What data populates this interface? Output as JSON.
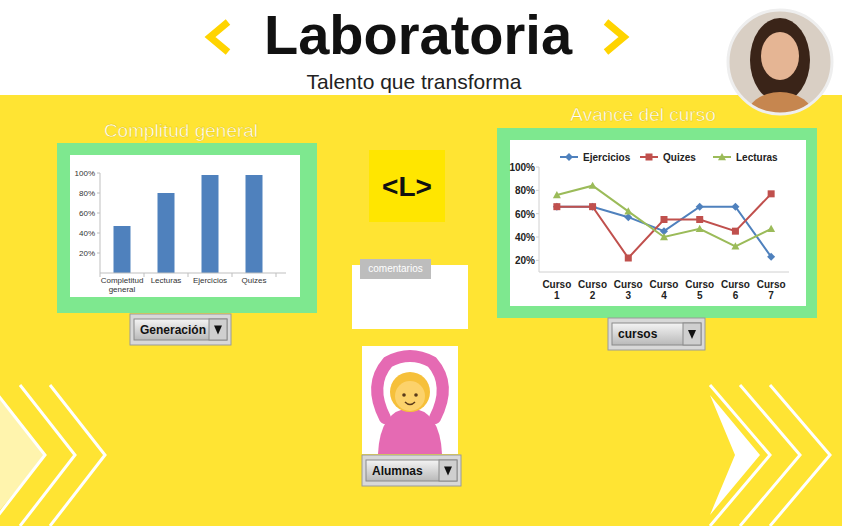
{
  "header": {
    "brand": "Laboratoria",
    "tagline": "Talento que transforma"
  },
  "chart_data": [
    {
      "type": "bar",
      "title": "Complitud general",
      "categories": [
        "Completitud general",
        "Lecturas",
        "Ejercicios",
        "Quizes"
      ],
      "values": [
        47,
        80,
        98,
        98
      ],
      "color": "#4f81bd",
      "ylim": [
        0,
        100
      ],
      "yticks": [
        {
          "value": 20,
          "label": "20%"
        },
        {
          "value": 40,
          "label": "40%"
        },
        {
          "value": 60,
          "label": "60%"
        },
        {
          "value": 80,
          "label": "80%"
        },
        {
          "value": 100,
          "label": "100%"
        }
      ],
      "grid": false
    },
    {
      "type": "line",
      "title": "Avance del curso",
      "categories": [
        "Curso 1",
        "Curso 2",
        "Curso 3",
        "Curso 4",
        "Curso 5",
        "Curso 6",
        "Curso 7"
      ],
      "series": [
        {
          "name": "Ejercicios",
          "color": "#4f81bd",
          "marker": "diamond",
          "values": [
            66,
            66,
            57,
            45,
            66,
            66,
            23
          ]
        },
        {
          "name": "Quizes",
          "color": "#c0504d",
          "marker": "square",
          "values": [
            66,
            66,
            22,
            55,
            55,
            45,
            77
          ]
        },
        {
          "name": "Lecturas",
          "color": "#9bbb59",
          "marker": "triangle",
          "values": [
            76,
            84,
            62,
            40,
            47,
            32,
            47
          ]
        }
      ],
      "ylim": [
        10,
        100
      ],
      "yticks": [
        {
          "value": 20,
          "label": "20%"
        },
        {
          "value": 40,
          "label": "40%"
        },
        {
          "value": 60,
          "label": "60%"
        },
        {
          "value": 80,
          "label": "80%"
        },
        {
          "value": 100,
          "label": "100%"
        }
      ],
      "legend": "top",
      "grid": false
    }
  ],
  "center": {
    "logo": "<L>"
  },
  "comments": {
    "label": "comentarios"
  },
  "filters": [
    {
      "label": "Generación"
    },
    {
      "label": "cursos"
    },
    {
      "label": "Alumnas"
    }
  ]
}
